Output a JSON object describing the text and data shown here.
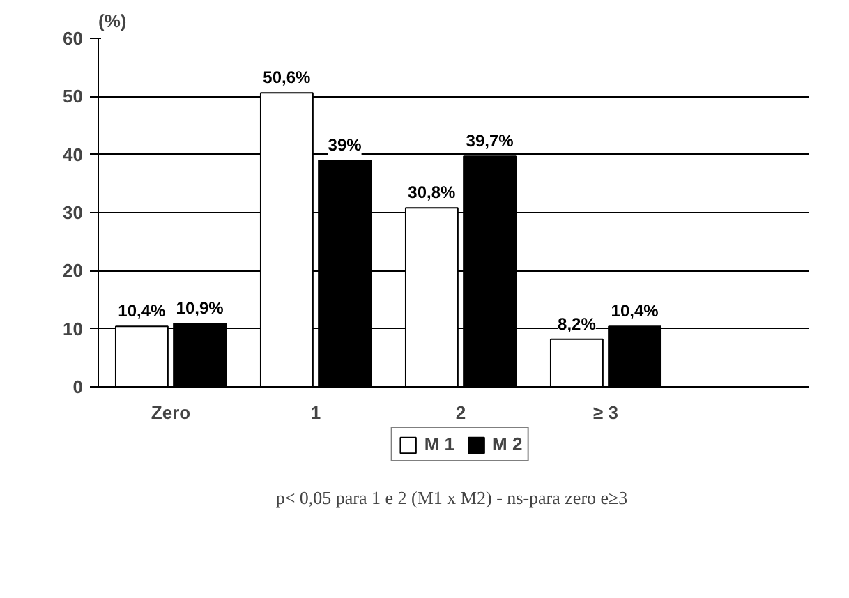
{
  "chart_data": {
    "type": "bar",
    "ylabel": "(%)",
    "categories": [
      "Zero",
      "1",
      "2",
      "≥ 3",
      null
    ],
    "series": [
      {
        "name": "M 1",
        "color": "#ffffff",
        "values": [
          10.4,
          50.6,
          30.8,
          8.2,
          null
        ],
        "value_labels": [
          "10,4%",
          "50,6%",
          "30,8%",
          "8,2%",
          null
        ]
      },
      {
        "name": "M 2",
        "color": "#000000",
        "values": [
          10.9,
          39,
          39.7,
          10.4,
          null
        ],
        "value_labels": [
          "10,9%",
          "39%",
          "39,7%",
          "10,4%",
          null
        ]
      }
    ],
    "ylim": [
      0,
      60
    ],
    "yticks": [
      0,
      10,
      20,
      30,
      40,
      50,
      60
    ],
    "grid": "y",
    "legend": "bottom",
    "annotations": [
      "p< 0,05 para 1 e 2 (M1 x M2)   -   ns-para zero e≥3"
    ]
  }
}
